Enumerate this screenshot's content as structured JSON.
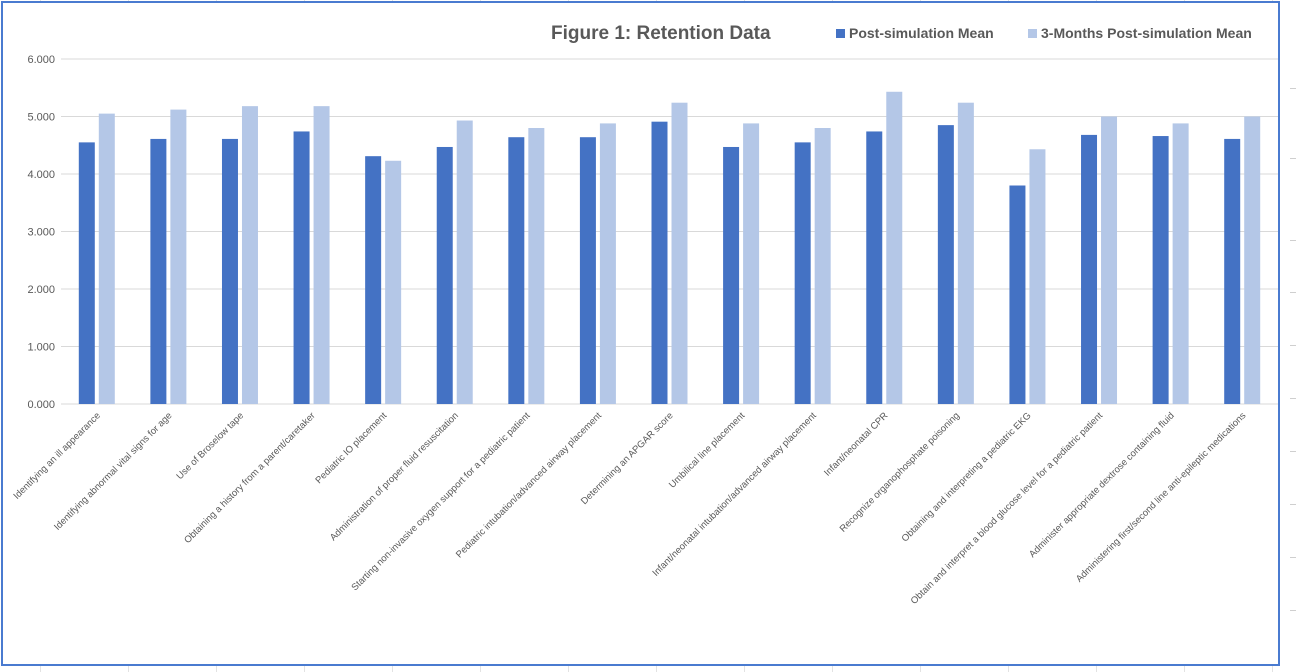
{
  "chart_data": {
    "type": "bar",
    "title": "Figure 1: Retention Data",
    "xlabel": "",
    "ylabel": "",
    "ylim": [
      0,
      6
    ],
    "yticks": [
      "0.000",
      "1.000",
      "2.000",
      "3.000",
      "4.000",
      "5.000",
      "6.000"
    ],
    "grid": true,
    "legend_position": "top-right",
    "categories": [
      "Identifying an ill appearance",
      "Identifying abnormal vital signs for age",
      "Use of Broselow tape",
      "Obtaining a history from a parent/caretaker",
      "Pediatric IO placement",
      "Administration of proper fluid resuscitation",
      "Starting non-invasive oxygen support for a pediatric patient",
      "Pediatric intubation/advanced airway placement",
      "Determining an APGAR score",
      "Umbilical line placement",
      "Infant/neonatal intubation/advanced airway placement",
      "Infant/neonatal CPR",
      "Recognize organophosphate poisoning",
      "Obtaining and interpreting a pediatric EKG",
      "Obtain and interpret a blood glucose level for a pediatric patient",
      "Administer appropriate dextrose containing fluid",
      "Administering first/second line anti-epileptic medications"
    ],
    "series": [
      {
        "name": "Post-simulation Mean",
        "color": "#4472c4",
        "values": [
          4.55,
          4.61,
          4.61,
          4.74,
          4.31,
          4.47,
          4.64,
          4.64,
          4.91,
          4.47,
          4.55,
          4.74,
          4.85,
          3.8,
          4.68,
          4.66,
          4.61
        ]
      },
      {
        "name": "3-Months Post-simulation Mean",
        "color": "#b4c7e7",
        "values": [
          5.05,
          5.12,
          5.18,
          5.18,
          4.23,
          4.93,
          4.8,
          4.88,
          5.24,
          4.88,
          4.8,
          5.43,
          5.24,
          4.43,
          5.0,
          4.88,
          5.0
        ]
      }
    ]
  }
}
